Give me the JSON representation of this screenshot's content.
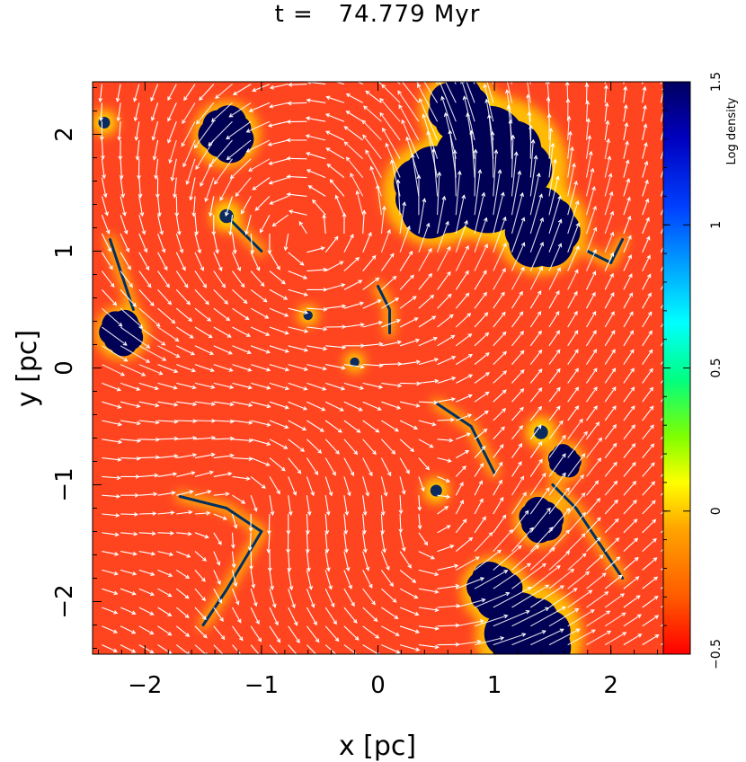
{
  "chart_data": {
    "type": "heatmap",
    "title": "t =   74.779 Myr",
    "xlabel": "x [pc]",
    "ylabel": "y [pc]",
    "xlim": [
      -2.45,
      2.45
    ],
    "ylim": [
      -2.45,
      2.45
    ],
    "xticks": [
      "−2",
      "−1",
      "0",
      "1",
      "2"
    ],
    "yticks": [
      "−2",
      "−1",
      "0",
      "1",
      "2"
    ],
    "colorbar": {
      "label": "Log density",
      "range": [
        -0.5,
        1.5
      ],
      "ticks": [
        "−0.5",
        "0",
        "0.5",
        "1",
        "1.5"
      ],
      "colors": [
        "#ff0000",
        "#ff5a00",
        "#ffa500",
        "#ffff00",
        "#80ff00",
        "#00ff80",
        "#00ffff",
        "#00a0ff",
        "#0040ff",
        "#0000c0",
        "#000060"
      ]
    },
    "background_color": "#ff4520",
    "dense_color": "#000055",
    "overlay": "velocity-vectors",
    "dense_regions": [
      {
        "x": 1.0,
        "y": 1.7,
        "r": 0.55
      },
      {
        "x": 0.5,
        "y": 1.5,
        "r": 0.4
      },
      {
        "x": 1.4,
        "y": 1.2,
        "r": 0.35
      },
      {
        "x": 0.7,
        "y": 2.2,
        "r": 0.3
      },
      {
        "x": -1.3,
        "y": 2.0,
        "r": 0.25
      },
      {
        "x": -2.2,
        "y": 0.3,
        "r": 0.2
      },
      {
        "x": 1.3,
        "y": -2.3,
        "r": 0.4
      },
      {
        "x": 1.0,
        "y": -1.9,
        "r": 0.25
      },
      {
        "x": 1.4,
        "y": -1.3,
        "r": 0.2
      },
      {
        "x": 1.6,
        "y": -0.8,
        "r": 0.15
      }
    ],
    "filaments": [
      [
        [
          -1.7,
          -1.1
        ],
        [
          -1.3,
          -1.2
        ],
        [
          -1.0,
          -1.4
        ]
      ],
      [
        [
          -1.0,
          -1.4
        ],
        [
          -1.3,
          -1.9
        ],
        [
          -1.5,
          -2.2
        ]
      ],
      [
        [
          0.5,
          -0.3
        ],
        [
          0.8,
          -0.5
        ],
        [
          1.0,
          -0.9
        ]
      ],
      [
        [
          1.5,
          -1.0
        ],
        [
          1.7,
          -1.2
        ],
        [
          2.1,
          -1.8
        ]
      ],
      [
        [
          -1.3,
          1.3
        ],
        [
          -1.1,
          1.1
        ],
        [
          -1.0,
          1.0
        ]
      ],
      [
        [
          -2.3,
          1.1
        ],
        [
          -2.2,
          0.8
        ],
        [
          -2.1,
          0.5
        ]
      ],
      [
        [
          0.0,
          0.7
        ],
        [
          0.1,
          0.5
        ],
        [
          0.1,
          0.3
        ]
      ],
      [
        [
          1.8,
          1.0
        ],
        [
          2.0,
          0.9
        ],
        [
          2.1,
          1.1
        ]
      ]
    ],
    "clumps": [
      {
        "x": -2.35,
        "y": 2.1,
        "r": 0.05
      },
      {
        "x": -0.6,
        "y": 0.45,
        "r": 0.04
      },
      {
        "x": -0.2,
        "y": 0.05,
        "r": 0.04
      },
      {
        "x": 0.5,
        "y": -1.05,
        "r": 0.05
      },
      {
        "x": -1.3,
        "y": 1.3,
        "r": 0.06
      },
      {
        "x": 1.4,
        "y": -0.55,
        "r": 0.06
      }
    ]
  }
}
